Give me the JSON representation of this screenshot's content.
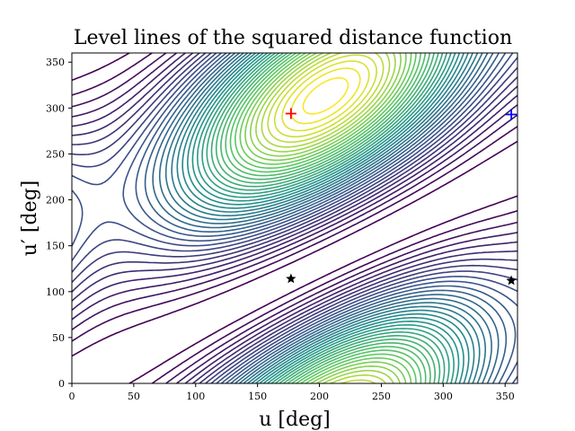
{
  "chart_data": {
    "type": "contour",
    "title": "Level lines of the squared distance function",
    "xlabel": "u [deg]",
    "ylabel": "u′ [deg]",
    "xlim": [
      0,
      360
    ],
    "ylim": [
      0,
      360
    ],
    "xticks": [
      "0",
      "50",
      "100",
      "150",
      "200",
      "250",
      "300",
      "350"
    ],
    "yticks": [
      "0",
      "50",
      "100",
      "150",
      "200",
      "250",
      "300",
      "350"
    ],
    "colormap": "viridis",
    "grid": false,
    "markers": [
      {
        "type": "plus",
        "color": "#ff0000",
        "x": 177,
        "y": 294
      },
      {
        "type": "plus",
        "color": "#0000ff",
        "x": 355,
        "y": 293
      },
      {
        "type": "star",
        "color": "#000000",
        "x": 177,
        "y": 114
      },
      {
        "type": "star",
        "color": "#000000",
        "x": 355,
        "y": 112
      }
    ]
  }
}
